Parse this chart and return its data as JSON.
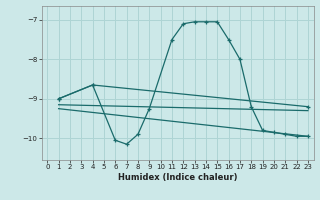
{
  "xlabel": "Humidex (Indice chaleur)",
  "xlim": [
    -0.5,
    23.5
  ],
  "ylim": [
    -10.55,
    -6.65
  ],
  "yticks": [
    -10,
    -9,
    -8,
    -7
  ],
  "xticks": [
    0,
    1,
    2,
    3,
    4,
    5,
    6,
    7,
    8,
    9,
    10,
    11,
    12,
    13,
    14,
    15,
    16,
    17,
    18,
    19,
    20,
    21,
    22,
    23
  ],
  "bg_color": "#cce8e8",
  "grid_color": "#aed4d4",
  "line_color": "#1a6b6b",
  "line1_x": [
    1,
    4,
    6,
    7,
    8,
    9,
    11,
    12,
    13,
    14,
    15,
    16,
    17,
    18,
    19,
    20,
    21,
    22,
    23
  ],
  "line1_y": [
    -9.0,
    -8.65,
    -10.05,
    -10.15,
    -9.9,
    -9.25,
    -7.5,
    -7.1,
    -7.05,
    -7.05,
    -7.05,
    -7.5,
    -8.0,
    -9.2,
    -9.8,
    -9.85,
    -9.9,
    -9.95,
    -9.95
  ],
  "line2_x": [
    1,
    4,
    23
  ],
  "line2_y": [
    -9.0,
    -8.65,
    -9.2
  ],
  "line3_x": [
    1,
    23
  ],
  "line3_y": [
    -9.15,
    -9.3
  ],
  "line4_x": [
    1,
    23
  ],
  "line4_y": [
    -9.25,
    -9.95
  ]
}
